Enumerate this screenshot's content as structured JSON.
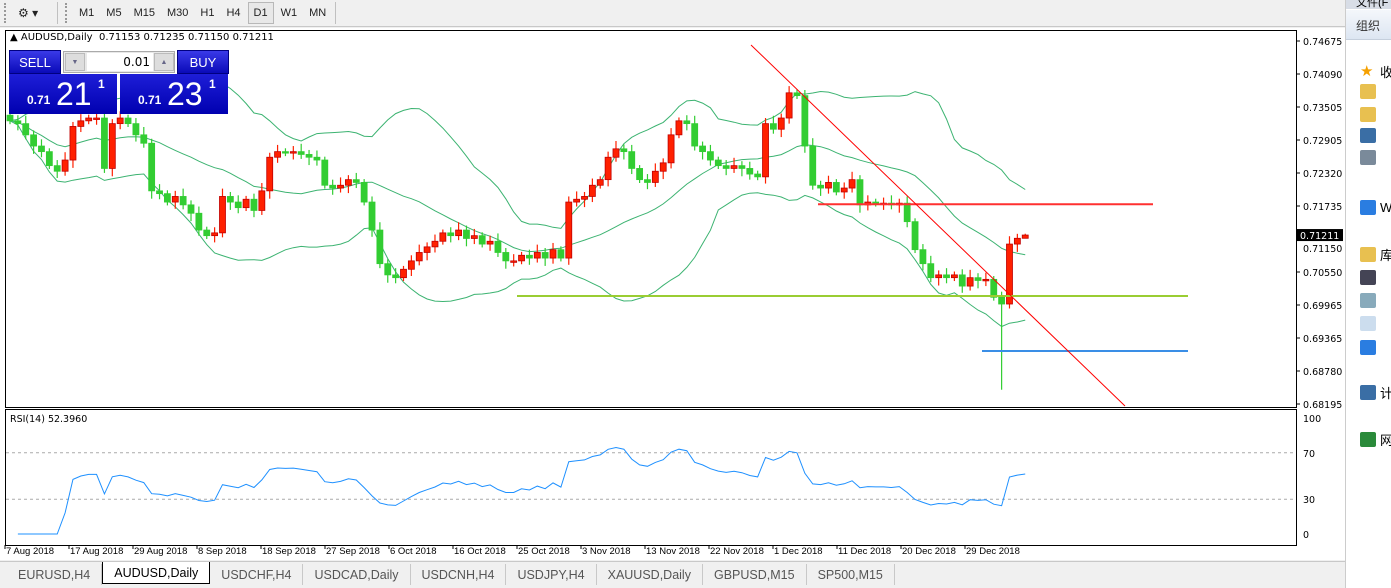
{
  "toolbar": {
    "timeframes": [
      "M1",
      "M5",
      "M15",
      "M30",
      "H1",
      "H4",
      "D1",
      "W1",
      "MN"
    ],
    "active_timeframe": "D1"
  },
  "chart": {
    "symbol_title": "AUDUSD,Daily",
    "ohlc_text": "0.71153 0.71235 0.71150 0.71211",
    "current_price_label": "0.71211",
    "price_ticks": [
      "0.74675",
      "0.74090",
      "0.73505",
      "0.72905",
      "0.72320",
      "0.71735",
      "0.71150",
      "0.70550",
      "0.69965",
      "0.69365",
      "0.68780",
      "0.68195"
    ],
    "date_labels": [
      "7 Aug 2018",
      "17 Aug 2018",
      "29 Aug 2018",
      "8 Sep 2018",
      "18 Sep 2018",
      "27 Sep 2018",
      "6 Oct 2018",
      "16 Oct 2018",
      "25 Oct 2018",
      "3 Nov 2018",
      "13 Nov 2018",
      "22 Nov 2018",
      "1 Dec 2018",
      "11 Dec 2018",
      "20 Dec 2018",
      "29 Dec 2018"
    ],
    "closes": [
      0.7325,
      0.732,
      0.73,
      0.728,
      0.727,
      0.7245,
      0.7235,
      0.7255,
      0.7315,
      0.7325,
      0.733,
      0.733,
      0.724,
      0.732,
      0.733,
      0.732,
      0.73,
      0.7285,
      0.72,
      0.7195,
      0.718,
      0.719,
      0.7175,
      0.716,
      0.713,
      0.712,
      0.7125,
      0.719,
      0.718,
      0.717,
      0.7185,
      0.7165,
      0.72,
      0.726,
      0.727,
      0.7268,
      0.727,
      0.7265,
      0.726,
      0.7255,
      0.721,
      0.7205,
      0.721,
      0.722,
      0.7215,
      0.718,
      0.713,
      0.707,
      0.705,
      0.7045,
      0.706,
      0.7075,
      0.709,
      0.71,
      0.711,
      0.7125,
      0.712,
      0.713,
      0.7115,
      0.712,
      0.7105,
      0.711,
      0.709,
      0.7075,
      0.7075,
      0.7085,
      0.708,
      0.709,
      0.708,
      0.7095,
      0.708,
      0.718,
      0.7185,
      0.719,
      0.721,
      0.722,
      0.726,
      0.7275,
      0.727,
      0.724,
      0.722,
      0.7215,
      0.7235,
      0.725,
      0.73,
      0.7325,
      0.732,
      0.728,
      0.727,
      0.7255,
      0.7245,
      0.724,
      0.7245,
      0.724,
      0.723,
      0.7225,
      0.732,
      0.731,
      0.733,
      0.7375,
      0.737,
      0.728,
      0.721,
      0.7205,
      0.7215,
      0.7198,
      0.7205,
      0.722,
      0.7175,
      0.718,
      0.7178,
      0.7178,
      0.7175,
      0.7178,
      0.7145,
      0.7095,
      0.707,
      0.7045,
      0.705,
      0.7045,
      0.705,
      0.703,
      0.7045,
      0.704,
      0.7042,
      0.701,
      0.6998,
      0.7105,
      0.71153,
      0.71211
    ],
    "last_bar": {
      "open": 0.71153,
      "high": 0.71235,
      "low": 0.7115,
      "close": 0.71211
    },
    "wick_overrides": [
      {
        "index": 126,
        "low": 0.6845
      }
    ],
    "up_color": "#ff2000",
    "down_color": "#32cd32",
    "band_color": "#3cb371",
    "objects": {
      "resistance_line": {
        "price": 0.7176,
        "color": "#ff3030"
      },
      "support_line": {
        "price": 0.70123,
        "color": "#9acd32"
      },
      "target_line": {
        "price": 0.69141,
        "color": "#3a8ee6"
      },
      "trendline": {
        "price_start": 0.74604,
        "price_end": 0.6816,
        "color": "#ff0000"
      }
    }
  },
  "trade_panel": {
    "sell_label": "SELL",
    "buy_label": "BUY",
    "lot_value": "0.01",
    "sell_price": {
      "prefix": "0.71",
      "big": "21",
      "sup": "1"
    },
    "buy_price": {
      "prefix": "0.71",
      "big": "23",
      "sup": "1"
    }
  },
  "rsi": {
    "label": "RSI(14) 52.3960",
    "levels": [
      "100",
      "70",
      "30",
      "0"
    ],
    "color": "#1e90ff"
  },
  "tabs": [
    "EURUSD,H4",
    "AUDUSD,Daily",
    "USDCHF,H4",
    "USDCAD,Daily",
    "USDCNH,H4",
    "USDJPY,H4",
    "XAUUSD,Daily",
    "GBPUSD,M15",
    "SP500,M15"
  ],
  "active_tab": "AUDUSD,Daily",
  "explorer": {
    "menu_partial": "文件(F",
    "organize": "组织",
    "items": [
      "收",
      "",
      "",
      "",
      "W",
      "库",
      "",
      "",
      "",
      "",
      "计",
      "网"
    ]
  }
}
